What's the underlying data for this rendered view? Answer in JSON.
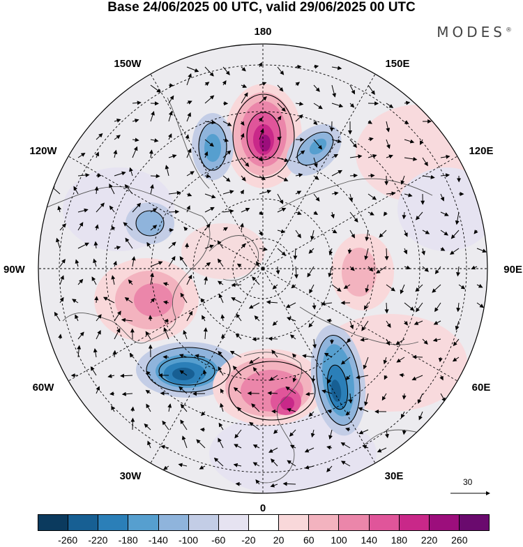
{
  "header": {
    "title": "Base 24/06/2025 00 UTC, valid 29/06/2025 00 UTC",
    "brand": "MODES",
    "brand_mark": "®"
  },
  "map": {
    "projection": "north-polar-stereographic",
    "longitude_labels": {
      "top": "180",
      "bottom": "0",
      "left": "90W",
      "right": "90E",
      "upper_left_1": "150W",
      "upper_left_2": "120W",
      "upper_right_1": "150E",
      "upper_right_2": "120E",
      "lower_left_1": "60W",
      "lower_left_2": "30W",
      "lower_right_1": "60E",
      "lower_right_2": "30E"
    },
    "wind_reference_label": "30",
    "anomaly_centers": [
      {
        "type": "positive",
        "location": "North Pacific near 180",
        "peak_level": 260
      },
      {
        "type": "negative",
        "location": "Gulf of Alaska",
        "peak_level": -180
      },
      {
        "type": "negative",
        "location": "Bering Sea / East Siberia",
        "peak_level": -140
      },
      {
        "type": "negative",
        "location": "Canada / Hudson Bay",
        "peak_level": -140
      },
      {
        "type": "positive",
        "location": "Central United States",
        "peak_level": 140
      },
      {
        "type": "negative",
        "location": "North Atlantic",
        "peak_level": -220
      },
      {
        "type": "positive",
        "location": "Western Europe",
        "peak_level": 180
      },
      {
        "type": "negative",
        "location": "Eastern Europe / Scandinavia",
        "peak_level": -220
      },
      {
        "type": "positive",
        "location": "Central Siberia",
        "peak_level": 100
      }
    ]
  },
  "legend": {
    "colors": [
      "#0b3a5e",
      "#175f93",
      "#2b7fb8",
      "#569fcf",
      "#8fb4dc",
      "#c3cde6",
      "#e6e3f1",
      "#ffffff",
      "#f9d8da",
      "#f3b3bf",
      "#eb86aa",
      "#e0559a",
      "#c92889",
      "#9c0e7c",
      "#6a0a6e"
    ],
    "ticks": [
      "-260",
      "-220",
      "-180",
      "-140",
      "-100",
      "-60",
      "-20",
      "20",
      "60",
      "100",
      "140",
      "180",
      "220",
      "260"
    ]
  }
}
